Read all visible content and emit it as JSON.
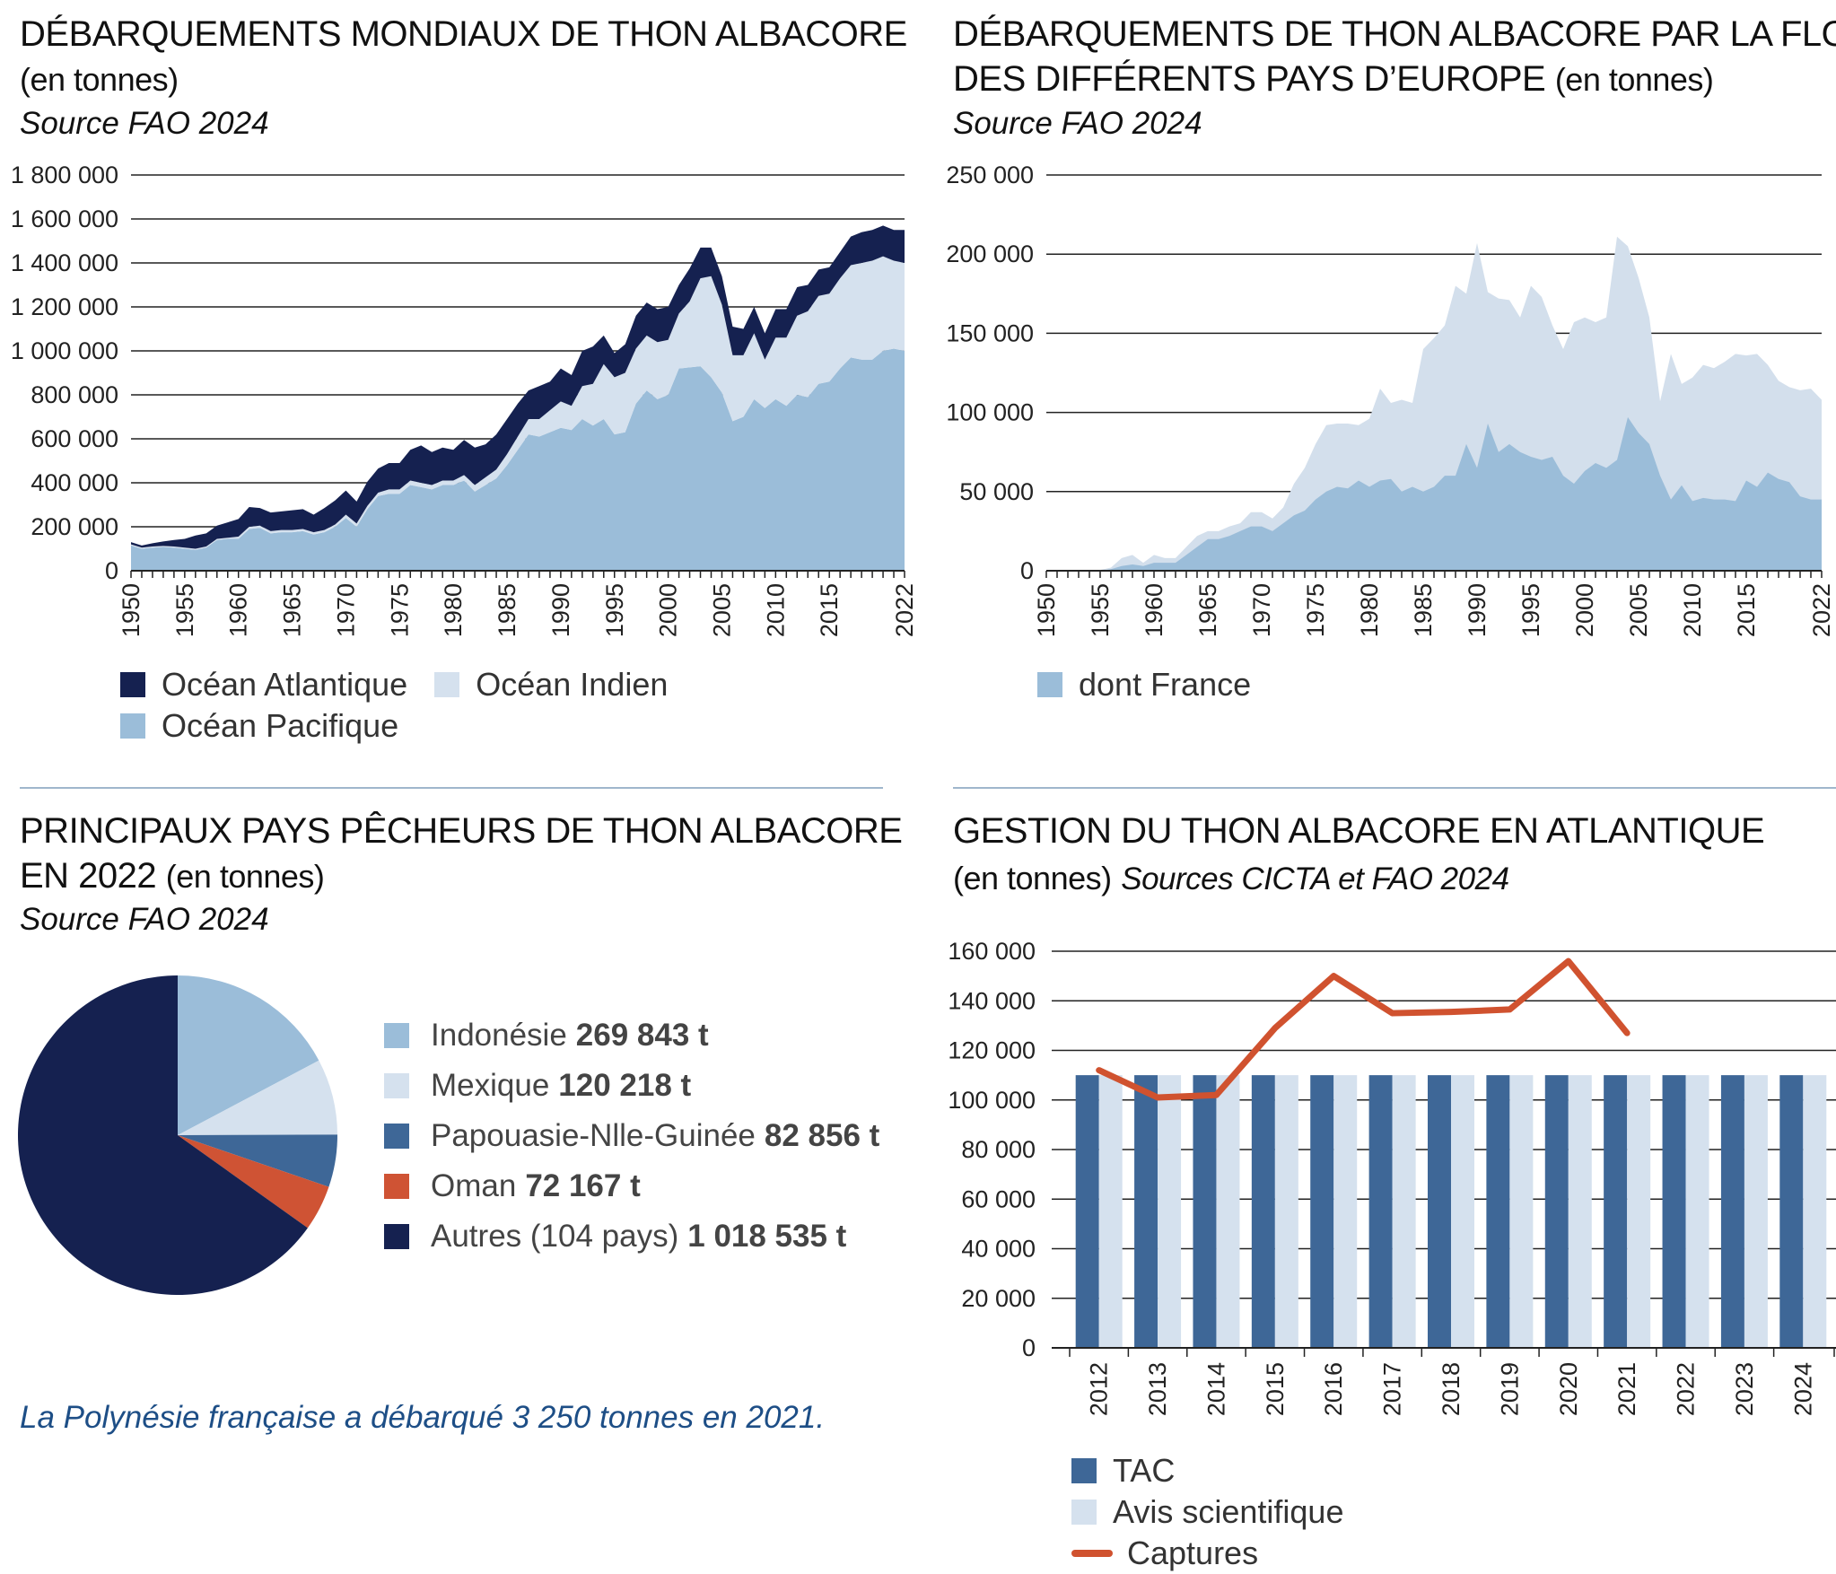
{
  "colors": {
    "atlantique": "#152150",
    "indien": "#d5e1ee",
    "pacifique": "#9bbdd9",
    "europe": "#d3dfec",
    "france": "#9bbdd9",
    "indonesie": "#9bbdd9",
    "mexique": "#d5e1ee",
    "papouasie": "#3e6797",
    "oman": "#cf5334",
    "autres": "#152150",
    "tac": "#3e6797",
    "avis": "#d5e1ee",
    "captures": "#d0522f",
    "note": "#1d4e86"
  },
  "panel1": {
    "title": "DÉBARQUEMENTS MONDIAUX DE THON ALBACORE",
    "unit": "(en tonnes)",
    "source": "Source FAO 2024",
    "y_ticks": [
      "1 800 000",
      "1 600 000",
      "1 400 000",
      "1 200 000",
      "1 000 000",
      "800 000",
      "600 000",
      "400 000",
      "200 000",
      "0"
    ],
    "x_ticks": [
      "1950",
      "1955",
      "1960",
      "1965",
      "1970",
      "1975",
      "1980",
      "1985",
      "1990",
      "1995",
      "2000",
      "2005",
      "2010",
      "2015",
      "2022"
    ],
    "legend": [
      "Océan Atlantique",
      "Océan Indien",
      "Océan Pacifique"
    ]
  },
  "panel2": {
    "title_line1": "DÉBARQUEMENTS DE THON ALBACORE PAR LA FLOTTE",
    "title_line2": "DES DIFFÉRENTS PAYS D’EUROPE",
    "unit": "(en tonnes)",
    "source": "Source FAO 2024",
    "y_ticks": [
      "250 000",
      "200 000",
      "150 000",
      "100 000",
      "50 000",
      "0"
    ],
    "x_ticks": [
      "1950",
      "1955",
      "1960",
      "1965",
      "1970",
      "1975",
      "1980",
      "1985",
      "1990",
      "1995",
      "2000",
      "2005",
      "2010",
      "2015",
      "2022"
    ],
    "legend": [
      "dont France"
    ]
  },
  "panel3": {
    "title_line1": "PRINCIPAUX PAYS PÊCHEURS DE THON ALBACORE",
    "title_line2": "EN 2022",
    "unit": "(en tonnes)",
    "source": "Source FAO 2024",
    "legend": [
      {
        "name": "Indonésie",
        "value": "269 843 t"
      },
      {
        "name": "Mexique",
        "value": "120 218 t"
      },
      {
        "name": "Papouasie-Nlle-Guinée",
        "value": "82 856 t"
      },
      {
        "name": "Oman",
        "value": "72 167 t"
      },
      {
        "name": "Autres (104 pays)",
        "value": "1 018 535 t"
      }
    ],
    "note": "La Polynésie française a débarqué 3 250 tonnes en 2021."
  },
  "panel4": {
    "title": "GESTION DU THON ALBACORE EN ATLANTIQUE",
    "unit": "(en tonnes)",
    "source": "Sources CICTA et FAO 2024",
    "y_ticks": [
      "160 000",
      "140 000",
      "120 000",
      "100 000",
      "80 000",
      "60 000",
      "40 000",
      "20 000",
      "0"
    ],
    "legend": [
      "TAC",
      "Avis scientifique",
      "Captures"
    ]
  },
  "chart_data": [
    {
      "type": "area",
      "title": "DÉBARQUEMENTS MONDIAUX DE THON ALBACORE",
      "ylim": [
        0,
        1800000
      ],
      "xlim": [
        1950,
        2022
      ],
      "stacked": true,
      "x": [
        1950,
        1951,
        1952,
        1953,
        1954,
        1955,
        1956,
        1957,
        1958,
        1959,
        1960,
        1961,
        1962,
        1963,
        1964,
        1965,
        1966,
        1967,
        1968,
        1969,
        1970,
        1971,
        1972,
        1973,
        1974,
        1975,
        1976,
        1977,
        1978,
        1979,
        1980,
        1981,
        1982,
        1983,
        1984,
        1985,
        1986,
        1987,
        1988,
        1989,
        1990,
        1991,
        1992,
        1993,
        1994,
        1995,
        1996,
        1997,
        1998,
        1999,
        2000,
        2001,
        2002,
        2003,
        2004,
        2005,
        2006,
        2007,
        2008,
        2009,
        2010,
        2011,
        2012,
        2013,
        2014,
        2015,
        2016,
        2017,
        2018,
        2019,
        2020,
        2021,
        2022
      ],
      "series": [
        {
          "name": "Océan Pacifique",
          "values": [
            115000,
            100000,
            105000,
            108000,
            105000,
            100000,
            95000,
            105000,
            140000,
            145000,
            145000,
            190000,
            195000,
            170000,
            175000,
            175000,
            180000,
            165000,
            175000,
            200000,
            240000,
            200000,
            280000,
            340000,
            350000,
            350000,
            390000,
            380000,
            370000,
            390000,
            390000,
            410000,
            360000,
            390000,
            420000,
            480000,
            550000,
            620000,
            610000,
            630000,
            650000,
            640000,
            690000,
            660000,
            690000,
            620000,
            630000,
            760000,
            820000,
            780000,
            800000,
            920000,
            925000,
            930000,
            880000,
            810000,
            680000,
            700000,
            780000,
            740000,
            780000,
            750000,
            800000,
            790000,
            850000,
            860000,
            920000,
            970000,
            960000,
            960000,
            1000000,
            1010000,
            1000000
          ]
        },
        {
          "name": "Océan Indien",
          "values": [
            5000,
            5000,
            5000,
            5000,
            5000,
            5000,
            5000,
            5000,
            5000,
            5000,
            10000,
            10000,
            10000,
            10000,
            10000,
            10000,
            10000,
            10000,
            10000,
            10000,
            15000,
            15000,
            15000,
            15000,
            20000,
            20000,
            20000,
            20000,
            20000,
            20000,
            20000,
            25000,
            30000,
            35000,
            40000,
            50000,
            60000,
            70000,
            80000,
            100000,
            120000,
            110000,
            150000,
            190000,
            250000,
            260000,
            270000,
            250000,
            250000,
            260000,
            250000,
            250000,
            300000,
            400000,
            460000,
            400000,
            300000,
            280000,
            300000,
            220000,
            280000,
            310000,
            360000,
            390000,
            400000,
            400000,
            410000,
            420000,
            440000,
            450000,
            430000,
            400000,
            400000
          ]
        },
        {
          "name": "Océan Atlantique",
          "values": [
            10000,
            10000,
            15000,
            20000,
            30000,
            40000,
            60000,
            60000,
            60000,
            70000,
            80000,
            90000,
            80000,
            85000,
            85000,
            90000,
            90000,
            80000,
            100000,
            110000,
            110000,
            100000,
            110000,
            110000,
            120000,
            120000,
            140000,
            170000,
            150000,
            150000,
            140000,
            160000,
            170000,
            150000,
            160000,
            160000,
            150000,
            130000,
            150000,
            130000,
            150000,
            140000,
            160000,
            170000,
            130000,
            110000,
            130000,
            150000,
            150000,
            150000,
            150000,
            130000,
            150000,
            140000,
            130000,
            130000,
            130000,
            120000,
            120000,
            120000,
            130000,
            130000,
            130000,
            120000,
            120000,
            120000,
            120000,
            130000,
            140000,
            140000,
            140000,
            140000,
            150000
          ]
        }
      ]
    },
    {
      "type": "area",
      "title": "DÉBARQUEMENTS DE THON ALBACORE PAR LA FLOTTE DES DIFFÉRENTS PAYS D’EUROPE",
      "ylim": [
        0,
        250000
      ],
      "xlim": [
        1950,
        2022
      ],
      "x": [
        1950,
        1951,
        1952,
        1953,
        1954,
        1955,
        1956,
        1957,
        1958,
        1959,
        1960,
        1961,
        1962,
        1963,
        1964,
        1965,
        1966,
        1967,
        1968,
        1969,
        1970,
        1971,
        1972,
        1973,
        1974,
        1975,
        1976,
        1977,
        1978,
        1979,
        1980,
        1981,
        1982,
        1983,
        1984,
        1985,
        1986,
        1987,
        1988,
        1989,
        1990,
        1991,
        1992,
        1993,
        1994,
        1995,
        1996,
        1997,
        1998,
        1999,
        2000,
        2001,
        2002,
        2003,
        2004,
        2005,
        2006,
        2007,
        2008,
        2009,
        2010,
        2011,
        2012,
        2013,
        2014,
        2015,
        2016,
        2017,
        2018,
        2019,
        2020,
        2021,
        2022
      ],
      "series": [
        {
          "name": "Europe",
          "values": [
            0,
            0,
            0,
            0,
            0,
            500,
            2000,
            8000,
            10000,
            5000,
            10000,
            8000,
            8000,
            15000,
            22000,
            25000,
            25000,
            28000,
            30000,
            37000,
            37000,
            33000,
            40000,
            55000,
            65000,
            80000,
            92000,
            93000,
            93000,
            92000,
            96000,
            115000,
            106000,
            108000,
            106000,
            140000,
            147000,
            155000,
            180000,
            175000,
            207000,
            176000,
            172000,
            171000,
            160000,
            180000,
            173000,
            155000,
            140000,
            157000,
            160000,
            157000,
            160000,
            211000,
            205000,
            185000,
            160000,
            107000,
            137000,
            118000,
            122000,
            130000,
            128000,
            132000,
            137000,
            136000,
            137000,
            130000,
            120000,
            116000,
            114000,
            115000,
            108000
          ]
        },
        {
          "name": "dont France",
          "values": [
            0,
            0,
            0,
            0,
            0,
            0,
            1000,
            3000,
            4000,
            3000,
            5000,
            5000,
            5000,
            10000,
            15000,
            20000,
            20000,
            22000,
            25000,
            28000,
            28000,
            25000,
            30000,
            35000,
            38000,
            45000,
            50000,
            53000,
            52000,
            57000,
            53000,
            57000,
            58000,
            50000,
            53000,
            50000,
            53000,
            60000,
            60000,
            80000,
            65000,
            93000,
            75000,
            80000,
            75000,
            72000,
            70000,
            72000,
            60000,
            55000,
            63000,
            68000,
            65000,
            70000,
            97000,
            87000,
            80000,
            60000,
            45000,
            54000,
            44000,
            46000,
            45000,
            45000,
            44000,
            57000,
            53000,
            62000,
            58000,
            56000,
            47000,
            45000,
            45000
          ]
        }
      ]
    },
    {
      "type": "pie",
      "title": "PRINCIPAUX PAYS PÊCHEURS DE THON ALBACORE EN 2022",
      "labels": [
        "Indonésie",
        "Mexique",
        "Papouasie-Nlle-Guinée",
        "Oman",
        "Autres (104 pays)"
      ],
      "values": [
        269843,
        120218,
        82856,
        72167,
        1018535
      ]
    },
    {
      "type": "bar",
      "title": "GESTION DU THON ALBACORE EN ATLANTIQUE",
      "categories": [
        "2012",
        "2013",
        "2014",
        "2015",
        "2016",
        "2017",
        "2018",
        "2019",
        "2020",
        "2021",
        "2022",
        "2023",
        "2024"
      ],
      "ylim": [
        0,
        160000
      ],
      "series": [
        {
          "name": "TAC",
          "type": "bar",
          "values": [
            110000,
            110000,
            110000,
            110000,
            110000,
            110000,
            110000,
            110000,
            110000,
            110000,
            110000,
            110000,
            110000
          ]
        },
        {
          "name": "Avis scientifique",
          "type": "bar",
          "values": [
            110000,
            110000,
            110000,
            110000,
            110000,
            110000,
            110000,
            110000,
            110000,
            110000,
            110000,
            110000,
            110000
          ]
        },
        {
          "name": "Captures",
          "type": "line",
          "values": [
            112000,
            101000,
            102000,
            129000,
            150000,
            135000,
            135500,
            136500,
            156000,
            127000,
            null,
            null,
            null
          ]
        }
      ]
    }
  ]
}
